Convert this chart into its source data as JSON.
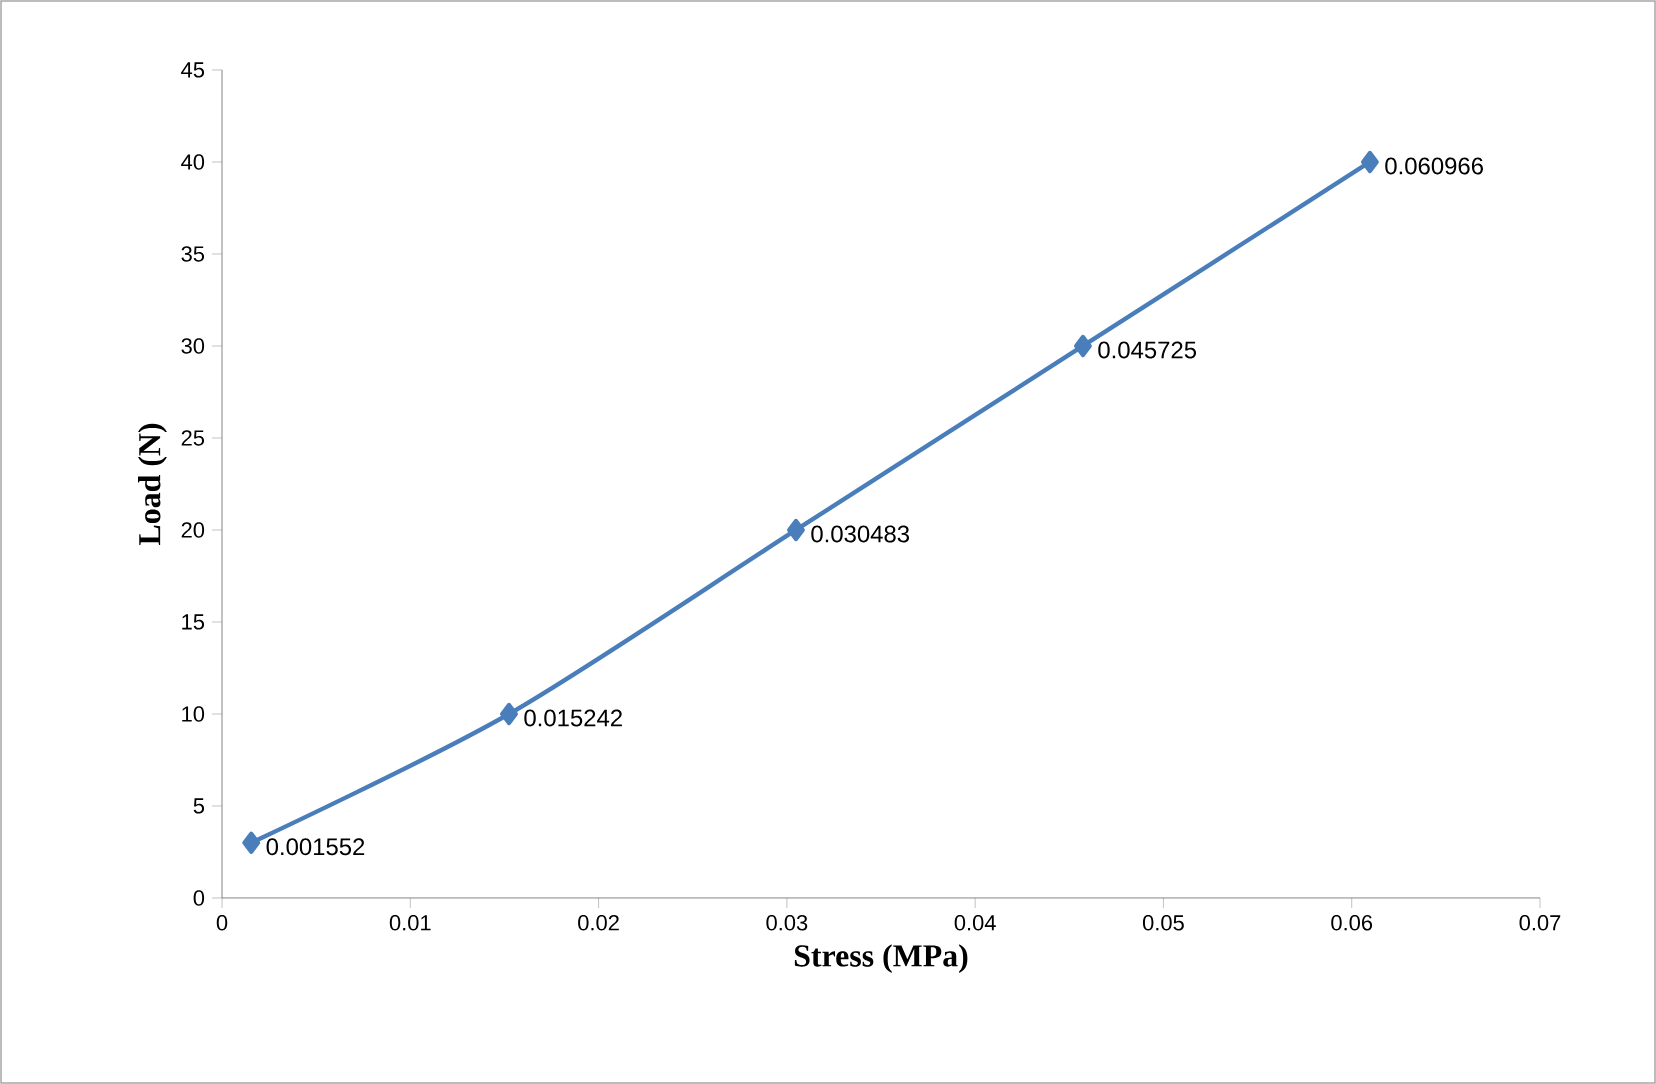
{
  "chart_data": {
    "type": "line",
    "xlabel": "Stress (MPa)",
    "ylabel": "Load (N)",
    "x": [
      0.001552,
      0.015242,
      0.030483,
      0.045725,
      0.060966
    ],
    "series": [
      {
        "color": "#4a7ebb",
        "values": [
          3,
          10,
          20,
          30,
          40
        ]
      }
    ],
    "annotations": [
      {
        "text": "0.001552",
        "x": 0.001552,
        "y": 3
      },
      {
        "text": "0.015242",
        "x": 0.015242,
        "y": 10
      },
      {
        "text": "0.030483",
        "x": 0.030483,
        "y": 20
      },
      {
        "text": "0.045725",
        "x": 0.045725,
        "y": 30
      },
      {
        "text": "0.060966",
        "x": 0.060966,
        "y": 40
      }
    ],
    "xlim": [
      0,
      0.07
    ],
    "ylim": [
      0,
      45
    ],
    "xticks": [
      0,
      0.01,
      0.02,
      0.03,
      0.04,
      0.05,
      0.06,
      0.07
    ],
    "yticks": [
      0,
      5,
      10,
      15,
      20,
      25,
      30,
      35,
      40,
      45
    ],
    "marker": "diamond",
    "line_style": "solid",
    "grid": false
  }
}
